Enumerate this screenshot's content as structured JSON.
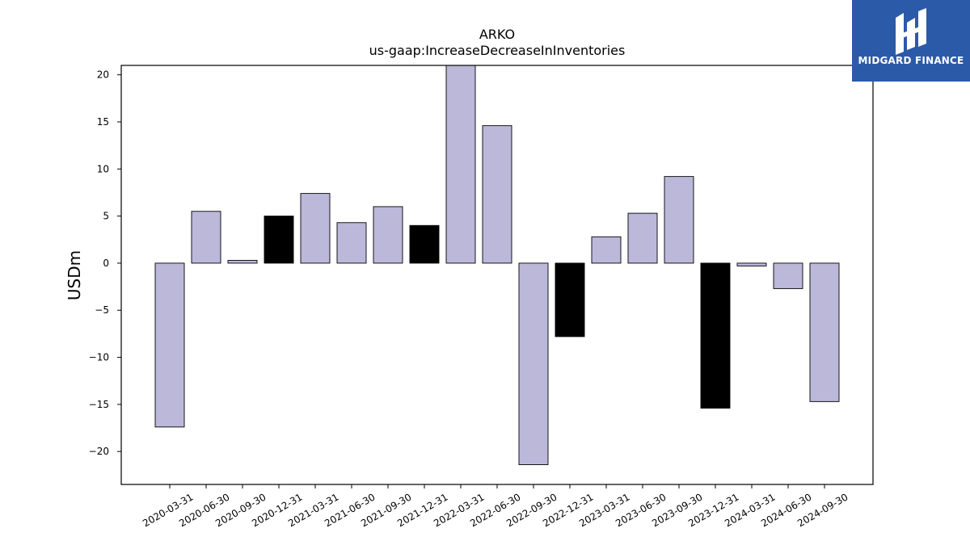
{
  "chart_data": {
    "type": "bar",
    "title": "ARKO",
    "subtitle": "us-gaap:IncreaseDecreaseInInventories",
    "xlabel": "",
    "ylabel": "USDm",
    "ylim": [
      -23.5,
      21
    ],
    "yticks": [
      -20,
      -15,
      -10,
      -5,
      0,
      5,
      10,
      15,
      20
    ],
    "ytick_labels": [
      "−20",
      "−15",
      "−10",
      "−5",
      "0",
      "5",
      "10",
      "15",
      "20"
    ],
    "grid": false,
    "categories": [
      "2020-03-31",
      "2020-06-30",
      "2020-09-30",
      "2020-12-31",
      "2021-03-31",
      "2021-06-30",
      "2021-09-30",
      "2021-12-31",
      "2022-03-31",
      "2022-06-30",
      "2022-09-30",
      "2022-12-31",
      "2023-03-31",
      "2023-06-30",
      "2023-09-30",
      "2023-12-31",
      "2024-03-31",
      "2024-06-30",
      "2024-09-30"
    ],
    "values": [
      -17.4,
      5.5,
      0.3,
      5.0,
      7.4,
      4.3,
      6.0,
      4.0,
      21.5,
      14.6,
      -21.4,
      -7.8,
      2.8,
      5.3,
      9.2,
      -15.4,
      -0.3,
      -2.7,
      -14.7
    ],
    "bar_colors": [
      "#bcb8da",
      "#bcb8da",
      "#bcb8da",
      "#000000",
      "#bcb8da",
      "#bcb8da",
      "#bcb8da",
      "#000000",
      "#bcb8da",
      "#bcb8da",
      "#bcb8da",
      "#000000",
      "#bcb8da",
      "#bcb8da",
      "#bcb8da",
      "#000000",
      "#bcb8da",
      "#bcb8da",
      "#bcb8da"
    ],
    "edge_color": "#000000"
  },
  "logo": {
    "text": "MIDGARD FINANCE",
    "background": "#2b5aa8",
    "icon": "midgard-logo-icon"
  }
}
